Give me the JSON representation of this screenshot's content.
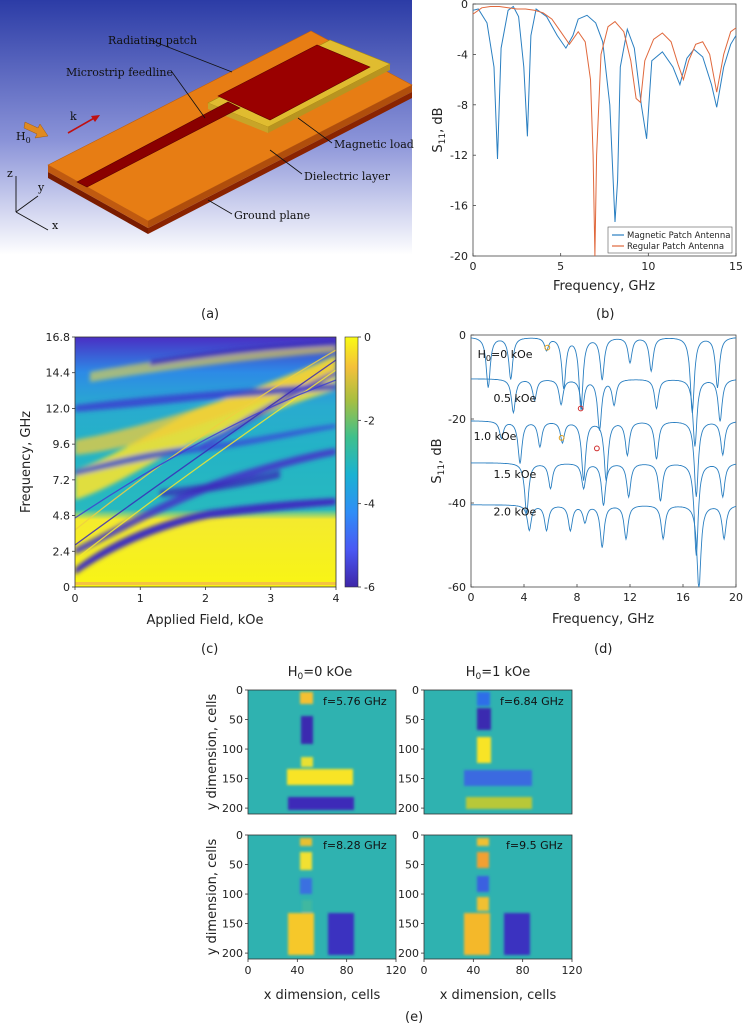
{
  "panel_a": {
    "caption": "(a)",
    "labels": {
      "radiating_patch": "Radiating patch",
      "microstrip_feedline": "Microstrip feedline",
      "magnetic_load": "Magnetic load",
      "dielectric_layer": "Dielectric layer",
      "ground_plane": "Ground plane",
      "field": "H",
      "field_sub": "0",
      "wave": "k",
      "axis_x": "x",
      "axis_y": "y",
      "axis_z": "z"
    },
    "colors": {
      "substrate": "#e77d14",
      "patch": "#9a0000",
      "load": "#e8c232",
      "sky_top": "#3040a8"
    }
  },
  "chart_data": [
    {
      "id": "b",
      "type": "line",
      "caption": "(b)",
      "xlabel": "Frequency, GHz",
      "ylabel": "S",
      "ylabel_sub": "11",
      "ylabel_suffix": ", dB",
      "xlim": [
        0,
        15
      ],
      "ylim": [
        -20,
        0
      ],
      "xticks": [
        0,
        5,
        10,
        15
      ],
      "yticks": [
        0,
        -4,
        -8,
        -12,
        -16,
        -20
      ],
      "legend_position": "bottom-right",
      "series": [
        {
          "name": "Magnetic Patch Antenna",
          "color": "#2a7fc1",
          "x": [
            0,
            0.3,
            0.8,
            1.2,
            1.4,
            1.6,
            2.0,
            2.3,
            2.6,
            2.9,
            3.1,
            3.3,
            3.6,
            4.2,
            4.8,
            5.3,
            5.7,
            6.0,
            6.5,
            7.0,
            7.4,
            7.8,
            8.1,
            8.25,
            8.4,
            8.8,
            9.2,
            9.6,
            9.9,
            10.2,
            10.8,
            11.4,
            11.8,
            12.2,
            12.6,
            13.1,
            13.6,
            13.9,
            14.3,
            14.7,
            15
          ],
          "y": [
            -0.5,
            -0.4,
            -1.5,
            -5,
            -12.3,
            -3.5,
            -0.5,
            -0.2,
            -1,
            -5,
            -10.5,
            -2.5,
            -0.4,
            -1,
            -2.5,
            -3.5,
            -2.5,
            -1.2,
            -0.9,
            -1.5,
            -3,
            -8,
            -17.3,
            -14,
            -5,
            -2,
            -3.5,
            -8,
            -10.7,
            -4.5,
            -3.8,
            -5,
            -6.4,
            -4.3,
            -3.6,
            -4.2,
            -6.4,
            -8.2,
            -5,
            -3.2,
            -2.5
          ]
        },
        {
          "name": "Regular Patch Antenna",
          "color": "#e0683c",
          "x": [
            0,
            0.5,
            1.0,
            1.5,
            2.0,
            2.5,
            3.0,
            3.5,
            4.0,
            4.5,
            5.0,
            5.5,
            6.0,
            6.4,
            6.7,
            6.85,
            6.95,
            7.05,
            7.3,
            7.7,
            8.1,
            8.6,
            9.0,
            9.3,
            9.55,
            9.8,
            10.3,
            10.8,
            11.3,
            11.7,
            12.0,
            12.3,
            12.7,
            13.1,
            13.5,
            13.9,
            14.3,
            14.7,
            15
          ],
          "y": [
            -0.8,
            -0.3,
            -0.2,
            -0.2,
            -0.3,
            -0.4,
            -0.4,
            -0.5,
            -0.7,
            -1.2,
            -2.2,
            -3.2,
            -2.2,
            -3.0,
            -6.0,
            -12,
            -20,
            -12,
            -4.0,
            -1.8,
            -1.4,
            -2.2,
            -4.5,
            -7.5,
            -7.8,
            -4.5,
            -2.8,
            -2.3,
            -3.0,
            -4.8,
            -6.0,
            -4.5,
            -3.2,
            -3.0,
            -4.0,
            -7.0,
            -4.0,
            -2.2,
            -1.9
          ]
        }
      ]
    },
    {
      "id": "c",
      "type": "heatmap",
      "caption": "(c)",
      "xlabel": "Applied Field, kOe",
      "ylabel": "Frequency, GHz",
      "xlim": [
        0,
        4
      ],
      "ylim": [
        0,
        16.8
      ],
      "xticks": [
        0,
        1,
        2,
        3,
        4
      ],
      "yticks": [
        0,
        2.4,
        4.8,
        7.2,
        9.6,
        12.0,
        14.4,
        16.8
      ],
      "colorbar": {
        "min": -6,
        "max": 0,
        "ticks": [
          0,
          -2,
          -4,
          -6
        ],
        "colormap": "parula"
      }
    },
    {
      "id": "d",
      "type": "line",
      "caption": "(d)",
      "xlabel": "Frequency, GHz",
      "ylabel": "S",
      "ylabel_sub": "11",
      "ylabel_suffix": ", dB",
      "xlim": [
        0,
        20
      ],
      "ylim": [
        -60,
        0
      ],
      "xticks": [
        0,
        4,
        8,
        12,
        16,
        20
      ],
      "yticks": [
        0,
        -20,
        -40,
        -60
      ],
      "color": "#2a7fc1",
      "series": [
        {
          "name": "H0=0 kOe",
          "name_prefix": "H",
          "name_sub": "0",
          "name_suffix": "=0 kOe",
          "offset": 0,
          "dips": [
            [
              1.3,
              12
            ],
            [
              3.0,
              10
            ],
            [
              5.7,
              3
            ],
            [
              7.0,
              12
            ],
            [
              8.3,
              17
            ],
            [
              9.9,
              10
            ],
            [
              12.0,
              6
            ],
            [
              13.6,
              8
            ],
            [
              16.7,
              18
            ],
            [
              18.6,
              12
            ]
          ]
        },
        {
          "name": "0.5 kOe",
          "offset": -10,
          "dips": [
            [
              3.2,
              8
            ],
            [
              4.8,
              5
            ],
            [
              6.8,
              6
            ],
            [
              8.4,
              7
            ],
            [
              9.7,
              12
            ],
            [
              10.8,
              6
            ],
            [
              14.0,
              7
            ],
            [
              16.9,
              16
            ],
            [
              18.8,
              10
            ]
          ]
        },
        {
          "name": "1.0 kOe",
          "offset": -20,
          "dips": [
            [
              2.3,
              4
            ],
            [
              3.7,
              10
            ],
            [
              5.2,
              6
            ],
            [
              6.9,
              5
            ],
            [
              8.5,
              14
            ],
            [
              10.2,
              14
            ],
            [
              11.8,
              8
            ],
            [
              14.0,
              9
            ],
            [
              17.0,
              18
            ],
            [
              19.0,
              8
            ]
          ]
        },
        {
          "name": "1.5 kOe",
          "offset": -30,
          "dips": [
            [
              4.2,
              12
            ],
            [
              6.0,
              6
            ],
            [
              8.5,
              6
            ],
            [
              10.0,
              10
            ],
            [
              11.9,
              8
            ],
            [
              14.3,
              9
            ],
            [
              17.0,
              22
            ],
            [
              19.0,
              8
            ]
          ]
        },
        {
          "name": "2.0 kOe",
          "offset": -40,
          "dips": [
            [
              4.4,
              6
            ],
            [
              5.7,
              6
            ],
            [
              7.5,
              6
            ],
            [
              8.6,
              4
            ],
            [
              9.9,
              10
            ],
            [
              11.7,
              8
            ],
            [
              14.5,
              8
            ],
            [
              17.2,
              20
            ],
            [
              19.1,
              8
            ]
          ]
        }
      ],
      "markers": [
        {
          "x": 5.76,
          "y": -3,
          "color": "#e0a020"
        },
        {
          "x": 8.28,
          "y": -17.5,
          "color": "#d03030"
        },
        {
          "x": 6.84,
          "y": -24.5,
          "color": "#e0a020"
        },
        {
          "x": 9.5,
          "y": -27,
          "color": "#d03030"
        }
      ]
    },
    {
      "id": "e",
      "type": "heatmap",
      "caption": "(e)",
      "xlabel": "x dimension, cells",
      "ylabel": "y dimension, cells",
      "xlim": [
        0,
        120
      ],
      "ylim": [
        0,
        210
      ],
      "xticks": [
        0,
        40,
        80,
        120
      ],
      "yticks": [
        0,
        50,
        100,
        150,
        200
      ],
      "column_titles": [
        {
          "prefix": "H",
          "sub": "0",
          "suffix": "=0 kOe"
        },
        {
          "prefix": "H",
          "sub": "0",
          "suffix": "=1 kOe"
        }
      ],
      "maps": [
        {
          "label": "f=5.76 GHz"
        },
        {
          "label": "f=6.84 GHz"
        },
        {
          "label": "f=8.28 GHz"
        },
        {
          "label": "f=9.5 GHz"
        }
      ]
    }
  ]
}
